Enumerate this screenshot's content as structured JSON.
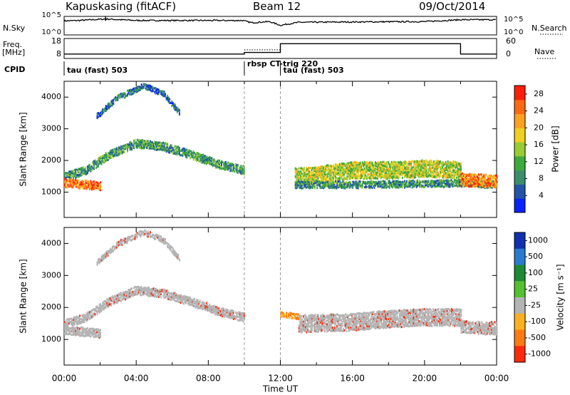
{
  "header": {
    "site": "Kapuskasing (fitACF)",
    "beam": "Beam 12",
    "date": "09/Oct/2014"
  },
  "left_labels": {
    "nsky": "N.Sky",
    "freq": "Freq.",
    "freq_unit": "[MHz]",
    "cpid": "CPID"
  },
  "right_labels": {
    "nsearch": "N.Search",
    "nave": "Nave"
  },
  "noise_axis": {
    "left_top": "10^5",
    "left_bottom": "10^0",
    "right_top": "10^5",
    "right_bottom": "10^0"
  },
  "freq_axis": {
    "left_top": "18",
    "left_bottom": "8",
    "right_top": "60",
    "right_bottom": "0"
  },
  "cpid_segments": [
    {
      "label": "tau (fast) 503",
      "start_h": 0.0,
      "end_h": 10.0
    },
    {
      "label": "rbsp CT-trig 220",
      "start_h": 10.0,
      "end_h": 12.0
    },
    {
      "label": "tau (fast) 503",
      "start_h": 12.0,
      "end_h": 24.0
    }
  ],
  "colors": {
    "power": [
      "#0a22ff",
      "#2255aa",
      "#3a8f6a",
      "#3daa3d",
      "#99cc33",
      "#f0d020",
      "#ffa020",
      "#ff6a10",
      "#ff1e0a"
    ],
    "velocity": [
      "#1030b0",
      "#2a7ad0",
      "#1d8a34",
      "#55c030",
      "#b4b4b4",
      "#ffb020",
      "#ff7a10",
      "#ff2a0a"
    ],
    "ground_scatter": "#b4b4b4"
  },
  "chart_data": [
    {
      "type": "line",
      "title": "",
      "x_range_hours": [
        0,
        24
      ],
      "series": [
        {
          "name": "N.Sky",
          "x": [
            0,
            0.8,
            2.3,
            4,
            8,
            9.9,
            10.4,
            11.4,
            12,
            13,
            16,
            20,
            22,
            24
          ],
          "y_log10": [
            3.8,
            3.9,
            4.3,
            3.9,
            3.9,
            3.9,
            3.3,
            3.6,
            2.6,
            3.4,
            3.5,
            3.6,
            4.1,
            4.1
          ]
        }
      ]
    },
    {
      "type": "line",
      "title": "",
      "x_range_hours": [
        0,
        24
      ],
      "series": [
        {
          "name": "Freq.",
          "x": [
            0,
            10,
            10,
            12,
            12,
            22,
            22,
            24
          ],
          "y": [
            10.2,
            10.2,
            11.0,
            11.0,
            15.4,
            15.4,
            10.2,
            10.2
          ]
        },
        {
          "name": "Nave",
          "x": [
            10,
            12
          ],
          "y": [
            26,
            26
          ]
        }
      ]
    },
    {
      "type": "heatmap",
      "title": "",
      "xlabel": "",
      "ylabel": "Slant Range [km]",
      "x_range_hours": [
        0,
        24
      ],
      "ylim": [
        200,
        4500
      ],
      "y_ticks": [
        1000,
        2000,
        3000,
        4000
      ],
      "colorbar": {
        "label": "Power [dB]",
        "ticks": [
          4,
          8,
          12,
          16,
          20,
          24,
          28
        ],
        "range": [
          0,
          30
        ]
      },
      "bands": [
        {
          "t": [
            0,
            1.2,
            2.5,
            4,
            5.5,
            7,
            8.5,
            10
          ],
          "r": [
            1500,
            1700,
            2200,
            2550,
            2450,
            2200,
            1900,
            1700
          ],
          "w": 260,
          "p": 10
        },
        {
          "t": [
            0,
            1,
            2
          ],
          "r": [
            1300,
            1250,
            1200
          ],
          "w": 250,
          "p": 25
        },
        {
          "t": [
            12.8,
            14,
            16,
            18,
            20,
            22
          ],
          "r": [
            1500,
            1550,
            1700,
            1700,
            1750,
            1700
          ],
          "w": 520,
          "p": 16
        },
        {
          "t": [
            12.8,
            16,
            22,
            24
          ],
          "r": [
            1250,
            1250,
            1300,
            1250
          ],
          "w": 220,
          "p": 9
        },
        {
          "t": [
            22,
            24
          ],
          "r": [
            1400,
            1350
          ],
          "w": 380,
          "p": 24
        },
        {
          "t": [
            1.8,
            3,
            4.4,
            5.5,
            6.4
          ],
          "r": [
            3400,
            4000,
            4350,
            4100,
            3500
          ],
          "w": 140,
          "p": 6
        }
      ]
    },
    {
      "type": "heatmap",
      "title": "",
      "xlabel": "Time UT",
      "ylabel": "Slant Range [km]",
      "x_range_hours": [
        0,
        24
      ],
      "ylim": [
        200,
        4500
      ],
      "y_ticks": [
        1000,
        2000,
        3000,
        4000
      ],
      "x_ticks": [
        "00:00",
        "04:00",
        "08:00",
        "12:00",
        "16:00",
        "20:00",
        "00:00"
      ],
      "colorbar": {
        "label": "Velocity [m s⁻¹]",
        "ticks": [
          "1000",
          "500",
          "100",
          "25",
          "-25",
          "-100",
          "-500",
          "-1000"
        ]
      },
      "bands": [
        {
          "t": [
            0,
            1.2,
            2.5,
            4,
            5.5,
            7,
            8.5,
            10
          ],
          "r": [
            1500,
            1700,
            2200,
            2550,
            2450,
            2200,
            1900,
            1700
          ],
          "w": 260,
          "v": 0
        },
        {
          "t": [
            0,
            1,
            2
          ],
          "r": [
            1300,
            1250,
            1200
          ],
          "w": 250,
          "v": 0
        },
        {
          "t": [
            13,
            16,
            18,
            20,
            22
          ],
          "r": [
            1500,
            1550,
            1650,
            1700,
            1700
          ],
          "w": 520,
          "v": 0
        },
        {
          "t": [
            22,
            24
          ],
          "r": [
            1400,
            1350
          ],
          "w": 380,
          "v": 0
        },
        {
          "t": [
            12,
            12.6,
            13
          ],
          "r": [
            1800,
            1750,
            1700
          ],
          "w": 150,
          "v": -300
        },
        {
          "t": [
            1.8,
            3,
            4.4,
            5.5,
            6.4
          ],
          "r": [
            3400,
            4000,
            4350,
            4100,
            3500
          ],
          "w": 140,
          "v": 0
        }
      ]
    }
  ]
}
